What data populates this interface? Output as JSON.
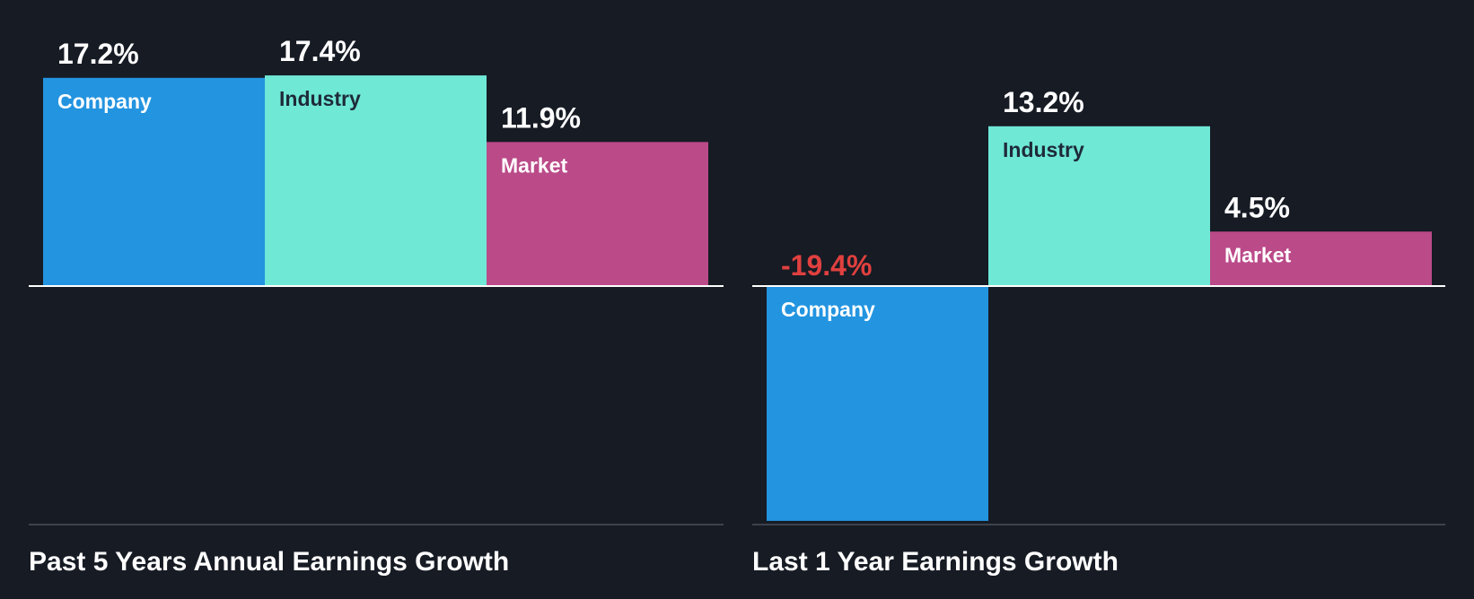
{
  "chart_data": [
    {
      "type": "bar",
      "title": "Past 5 Years Annual Earnings Growth",
      "categories": [
        "Company",
        "Industry",
        "Market"
      ],
      "values": [
        17.2,
        17.4,
        11.9
      ],
      "value_labels": [
        "17.2%",
        "17.4%",
        "11.9%"
      ],
      "unit": "%",
      "ylim": [
        -20.0,
        17.4
      ],
      "colors": [
        "#2394e0",
        "#6fe8d6",
        "#bb4a89"
      ]
    },
    {
      "type": "bar",
      "title": "Last 1 Year Earnings Growth",
      "categories": [
        "Company",
        "Industry",
        "Market"
      ],
      "values": [
        -19.4,
        13.2,
        4.5
      ],
      "value_labels": [
        "-19.4%",
        "13.2%",
        "4.5%"
      ],
      "unit": "%",
      "ylim": [
        -20.0,
        17.4
      ],
      "colors": [
        "#2394e0",
        "#6fe8d6",
        "#bb4a89"
      ]
    }
  ],
  "colors": {
    "background": "#161b24",
    "value_text": "#ffffff",
    "negative_value_text": "#e0403f",
    "label_on_dark": "#ffffff",
    "label_on_light": "#1e2a38"
  }
}
